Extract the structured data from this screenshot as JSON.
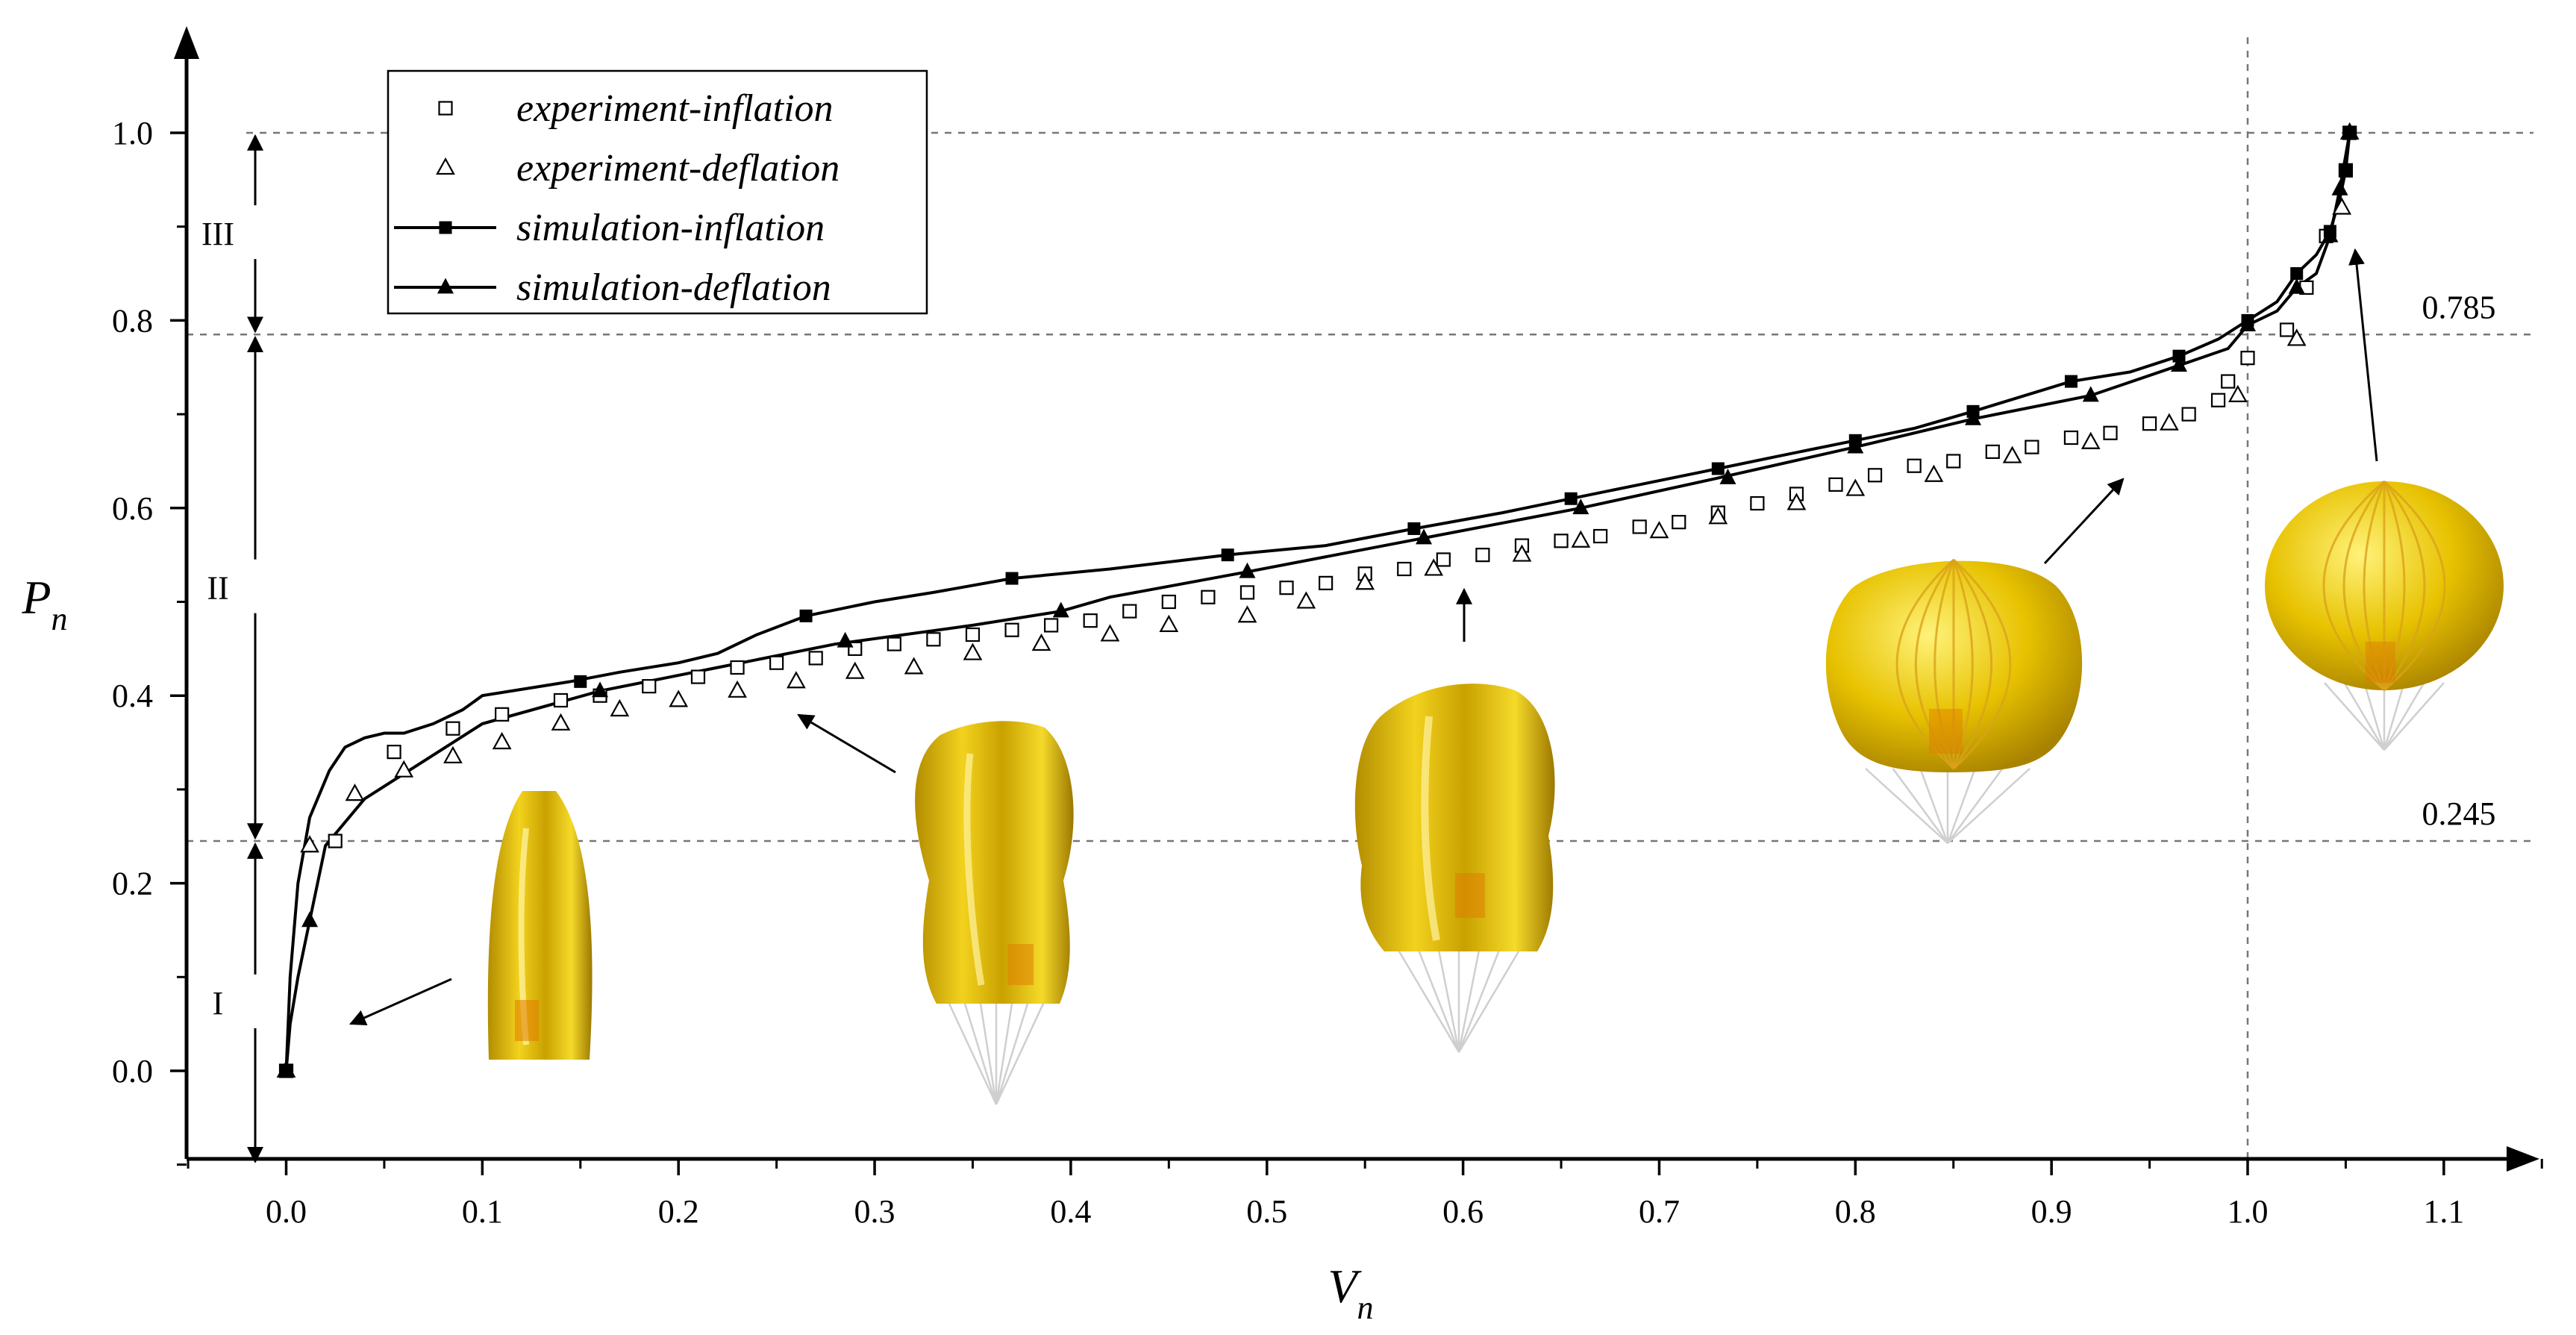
{
  "chart_data": {
    "type": "scatter",
    "xlabel": "V",
    "xlabel_sub": "n",
    "ylabel": "P",
    "ylabel_sub": "n",
    "xlim": [
      -0.05,
      1.15
    ],
    "ylim": [
      -0.1,
      1.1
    ],
    "x_ticks": [
      "0.0",
      "0.1",
      "0.2",
      "0.3",
      "0.4",
      "0.5",
      "0.6",
      "0.7",
      "0.8",
      "0.9",
      "1.0",
      "1.1"
    ],
    "y_ticks": [
      "0.0",
      "0.2",
      "0.4",
      "0.6",
      "0.8",
      "1.0"
    ],
    "ref_lines": {
      "y": [
        {
          "value": 1.0,
          "label": ""
        },
        {
          "value": 0.785,
          "label": "0.785"
        },
        {
          "value": 0.245,
          "label": "0.245"
        }
      ],
      "x": [
        {
          "value": 1.0
        }
      ]
    },
    "regions": [
      {
        "label": "I",
        "from": -0.1,
        "to": 0.245
      },
      {
        "label": "II",
        "from": 0.245,
        "to": 0.785
      },
      {
        "label": "III",
        "from": 0.785,
        "to": 1.0
      }
    ],
    "legend": {
      "position": "top-left",
      "entries": [
        "experiment-inflation",
        "experiment-deflation",
        "simulation-inflation",
        "simulation-deflation"
      ]
    },
    "series": [
      {
        "name": "experiment-inflation",
        "style": "open-square",
        "points": [
          [
            0.0,
            0.0
          ],
          [
            0.025,
            0.245
          ],
          [
            0.055,
            0.34
          ],
          [
            0.085,
            0.365
          ],
          [
            0.11,
            0.38
          ],
          [
            0.14,
            0.395
          ],
          [
            0.16,
            0.4
          ],
          [
            0.185,
            0.41
          ],
          [
            0.21,
            0.42
          ],
          [
            0.23,
            0.43
          ],
          [
            0.25,
            0.435
          ],
          [
            0.27,
            0.44
          ],
          [
            0.29,
            0.45
          ],
          [
            0.31,
            0.455
          ],
          [
            0.33,
            0.46
          ],
          [
            0.35,
            0.465
          ],
          [
            0.37,
            0.47
          ],
          [
            0.39,
            0.475
          ],
          [
            0.41,
            0.48
          ],
          [
            0.43,
            0.49
          ],
          [
            0.45,
            0.5
          ],
          [
            0.47,
            0.505
          ],
          [
            0.49,
            0.51
          ],
          [
            0.51,
            0.515
          ],
          [
            0.53,
            0.52
          ],
          [
            0.55,
            0.53
          ],
          [
            0.57,
            0.535
          ],
          [
            0.59,
            0.545
          ],
          [
            0.61,
            0.55
          ],
          [
            0.63,
            0.56
          ],
          [
            0.65,
            0.565
          ],
          [
            0.67,
            0.57
          ],
          [
            0.69,
            0.58
          ],
          [
            0.71,
            0.585
          ],
          [
            0.73,
            0.595
          ],
          [
            0.75,
            0.605
          ],
          [
            0.77,
            0.615
          ],
          [
            0.79,
            0.625
          ],
          [
            0.81,
            0.635
          ],
          [
            0.83,
            0.645
          ],
          [
            0.85,
            0.65
          ],
          [
            0.87,
            0.66
          ],
          [
            0.89,
            0.665
          ],
          [
            0.91,
            0.675
          ],
          [
            0.93,
            0.68
          ],
          [
            0.95,
            0.69
          ],
          [
            0.97,
            0.7
          ],
          [
            0.985,
            0.715
          ],
          [
            0.99,
            0.735
          ],
          [
            1.0,
            0.76
          ],
          [
            1.02,
            0.79
          ],
          [
            1.03,
            0.835
          ],
          [
            1.04,
            0.89
          ],
          [
            1.05,
            0.96
          ],
          [
            1.052,
            1.0
          ]
        ]
      },
      {
        "name": "experiment-deflation",
        "style": "open-triangle",
        "points": [
          [
            1.052,
            1.0
          ],
          [
            1.048,
            0.92
          ],
          [
            1.025,
            0.78
          ],
          [
            0.995,
            0.72
          ],
          [
            0.96,
            0.69
          ],
          [
            0.92,
            0.67
          ],
          [
            0.88,
            0.655
          ],
          [
            0.84,
            0.635
          ],
          [
            0.8,
            0.62
          ],
          [
            0.77,
            0.605
          ],
          [
            0.73,
            0.59
          ],
          [
            0.7,
            0.575
          ],
          [
            0.66,
            0.565
          ],
          [
            0.63,
            0.55
          ],
          [
            0.585,
            0.535
          ],
          [
            0.55,
            0.52
          ],
          [
            0.52,
            0.5
          ],
          [
            0.49,
            0.485
          ],
          [
            0.45,
            0.475
          ],
          [
            0.42,
            0.465
          ],
          [
            0.385,
            0.455
          ],
          [
            0.35,
            0.445
          ],
          [
            0.32,
            0.43
          ],
          [
            0.29,
            0.425
          ],
          [
            0.26,
            0.415
          ],
          [
            0.23,
            0.405
          ],
          [
            0.2,
            0.395
          ],
          [
            0.17,
            0.385
          ],
          [
            0.14,
            0.37
          ],
          [
            0.11,
            0.35
          ],
          [
            0.085,
            0.335
          ],
          [
            0.06,
            0.32
          ],
          [
            0.035,
            0.295
          ],
          [
            0.012,
            0.24
          ],
          [
            0.0,
            0.0
          ]
        ]
      },
      {
        "name": "simulation-inflation",
        "style": "line-filled-square",
        "points": [
          [
            0.0,
            0.0
          ],
          [
            0.002,
            0.1
          ],
          [
            0.006,
            0.2
          ],
          [
            0.012,
            0.27
          ],
          [
            0.022,
            0.32
          ],
          [
            0.03,
            0.345
          ],
          [
            0.04,
            0.355
          ],
          [
            0.05,
            0.36
          ],
          [
            0.06,
            0.36
          ],
          [
            0.075,
            0.37
          ],
          [
            0.09,
            0.385
          ],
          [
            0.1,
            0.4
          ],
          [
            0.13,
            0.41
          ],
          [
            0.145,
            0.415
          ],
          [
            0.17,
            0.425
          ],
          [
            0.2,
            0.435
          ],
          [
            0.22,
            0.445
          ],
          [
            0.24,
            0.465
          ],
          [
            0.265,
            0.485
          ],
          [
            0.3,
            0.5
          ],
          [
            0.33,
            0.51
          ],
          [
            0.37,
            0.525
          ],
          [
            0.42,
            0.535
          ],
          [
            0.48,
            0.55
          ],
          [
            0.53,
            0.56
          ],
          [
            0.575,
            0.578
          ],
          [
            0.62,
            0.595
          ],
          [
            0.655,
            0.61
          ],
          [
            0.69,
            0.625
          ],
          [
            0.73,
            0.642
          ],
          [
            0.76,
            0.655
          ],
          [
            0.8,
            0.672
          ],
          [
            0.83,
            0.685
          ],
          [
            0.86,
            0.703
          ],
          [
            0.91,
            0.735
          ],
          [
            0.94,
            0.745
          ],
          [
            0.965,
            0.762
          ],
          [
            0.985,
            0.78
          ],
          [
            1.0,
            0.8
          ],
          [
            1.015,
            0.82
          ],
          [
            1.025,
            0.85
          ],
          [
            1.035,
            0.87
          ],
          [
            1.042,
            0.895
          ],
          [
            1.047,
            0.93
          ],
          [
            1.05,
            0.96
          ],
          [
            1.052,
            1.0
          ]
        ]
      },
      {
        "name": "simulation-deflation",
        "style": "line-filled-triangle",
        "points": [
          [
            1.052,
            1.0
          ],
          [
            1.047,
            0.94
          ],
          [
            1.042,
            0.89
          ],
          [
            1.035,
            0.85
          ],
          [
            1.025,
            0.835
          ],
          [
            1.015,
            0.81
          ],
          [
            1.0,
            0.795
          ],
          [
            0.99,
            0.77
          ],
          [
            0.965,
            0.752
          ],
          [
            0.92,
            0.72
          ],
          [
            0.86,
            0.695
          ],
          [
            0.8,
            0.665
          ],
          [
            0.73,
            0.632
          ],
          [
            0.66,
            0.6
          ],
          [
            0.58,
            0.568
          ],
          [
            0.49,
            0.532
          ],
          [
            0.42,
            0.505
          ],
          [
            0.395,
            0.49
          ],
          [
            0.35,
            0.475
          ],
          [
            0.28,
            0.455
          ],
          [
            0.22,
            0.43
          ],
          [
            0.16,
            0.405
          ],
          [
            0.1,
            0.37
          ],
          [
            0.07,
            0.33
          ],
          [
            0.04,
            0.29
          ],
          [
            0.02,
            0.24
          ],
          [
            0.012,
            0.16
          ],
          [
            0.006,
            0.1
          ],
          [
            0.002,
            0.05
          ],
          [
            0.0,
            0.0
          ]
        ]
      }
    ],
    "markers": {
      "simulation-inflation": [
        [
          0.0,
          0.0
        ],
        [
          0.15,
          0.415
        ],
        [
          0.265,
          0.485
        ],
        [
          0.48,
          0.55
        ],
        [
          0.37,
          0.525
        ],
        [
          0.575,
          0.578
        ],
        [
          0.655,
          0.61
        ],
        [
          0.73,
          0.642
        ],
        [
          0.8,
          0.672
        ],
        [
          0.86,
          0.703
        ],
        [
          0.91,
          0.735
        ],
        [
          0.965,
          0.762
        ],
        [
          1.0,
          0.8
        ],
        [
          1.025,
          0.85
        ],
        [
          1.042,
          0.895
        ],
        [
          1.05,
          0.96
        ],
        [
          1.052,
          1.0
        ]
      ],
      "simulation-deflation": [
        [
          0.0,
          0.0
        ],
        [
          0.012,
          0.16
        ],
        [
          0.16,
          0.405
        ],
        [
          0.285,
          0.458
        ],
        [
          0.395,
          0.49
        ],
        [
          0.49,
          0.532
        ],
        [
          0.58,
          0.568
        ],
        [
          0.66,
          0.6
        ],
        [
          0.735,
          0.632
        ],
        [
          0.8,
          0.665
        ],
        [
          0.86,
          0.695
        ],
        [
          0.92,
          0.72
        ],
        [
          0.965,
          0.752
        ],
        [
          1.0,
          0.795
        ],
        [
          1.025,
          0.835
        ],
        [
          1.042,
          0.89
        ],
        [
          1.047,
          0.94
        ],
        [
          1.052,
          1.0
        ]
      ]
    }
  }
}
